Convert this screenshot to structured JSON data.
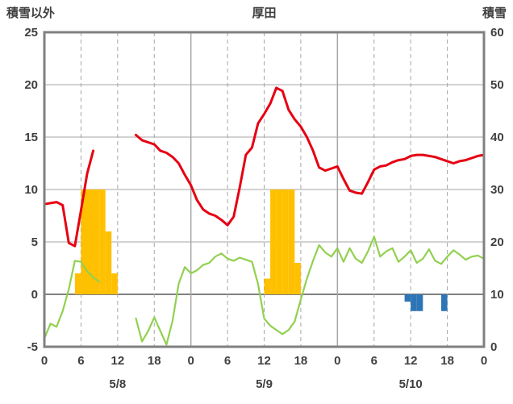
{
  "header": {
    "left_axis_title": "積雪以外",
    "station_title": "厚田",
    "right_axis_title": "積雪"
  },
  "chart_data": {
    "type": "line",
    "title": "厚田",
    "grid": true,
    "left_axis": {
      "label": "積雪以外",
      "min": -5,
      "max": 25,
      "ticks": [
        -5,
        0,
        5,
        10,
        15,
        20,
        25
      ]
    },
    "right_axis": {
      "label": "積雪",
      "min": 0,
      "max": 60,
      "ticks": [
        0,
        10,
        20,
        30,
        40,
        50,
        60
      ]
    },
    "x_axis": {
      "hours_total": 72,
      "tick_hours": [
        0,
        6,
        12,
        18,
        24,
        30,
        36,
        42,
        48,
        54,
        60,
        66,
        72
      ],
      "tick_labels": [
        "0",
        "6",
        "12",
        "18",
        "0",
        "6",
        "12",
        "18",
        "0",
        "6",
        "12",
        "18",
        "0"
      ],
      "day_labels": [
        {
          "label": "5/8",
          "hour": 12
        },
        {
          "label": "5/9",
          "hour": 36
        },
        {
          "label": "5/10",
          "hour": 60
        }
      ]
    },
    "series": [
      {
        "name": "temperature-line",
        "kind": "line",
        "axis": "left",
        "color": "#e60012",
        "width": 3,
        "values": [
          8.6,
          8.7,
          8.8,
          8.5,
          4.9,
          4.6,
          8.0,
          11.5,
          13.7,
          null,
          null,
          null,
          null,
          null,
          null,
          15.2,
          14.7,
          14.5,
          14.3,
          13.7,
          13.5,
          13.1,
          12.5,
          11.4,
          10.4,
          9.0,
          8.1,
          7.7,
          7.5,
          7.1,
          6.6,
          7.4,
          10.2,
          13.3,
          14.0,
          16.3,
          17.2,
          18.2,
          19.7,
          19.4,
          17.6,
          16.7,
          16.0,
          15.0,
          13.7,
          12.1,
          11.8,
          12.0,
          12.2,
          11.0,
          9.9,
          9.7,
          9.6,
          10.7,
          11.9,
          12.2,
          12.3,
          12.6,
          12.8,
          12.9,
          13.2,
          13.3,
          13.3,
          13.2,
          13.1,
          12.9,
          12.7,
          12.5,
          12.7,
          12.8,
          13.0,
          13.2,
          13.3
        ]
      },
      {
        "name": "wind-line",
        "kind": "line",
        "axis": "left",
        "color": "#92d050",
        "width": 2.2,
        "values": [
          -4.2,
          -2.8,
          -3.1,
          -1.6,
          0.5,
          3.2,
          3.1,
          2.2,
          1.6,
          1.2,
          null,
          null,
          null,
          null,
          null,
          -2.3,
          -4.5,
          -3.5,
          -2.2,
          -3.5,
          -4.8,
          -2.5,
          1.0,
          2.6,
          2.0,
          2.3,
          2.8,
          3.0,
          3.6,
          3.9,
          3.4,
          3.2,
          3.5,
          3.3,
          3.1,
          1.0,
          -2.3,
          -3.0,
          -3.4,
          -3.8,
          -3.4,
          -2.6,
          -0.5,
          1.5,
          3.2,
          4.7,
          4.0,
          3.6,
          4.4,
          3.1,
          4.4,
          3.4,
          3.0,
          4.1,
          5.5,
          3.6,
          4.1,
          4.4,
          3.1,
          3.6,
          4.2,
          3.0,
          3.4,
          4.3,
          3.2,
          2.9,
          3.6,
          4.2,
          3.8,
          3.3,
          3.6,
          3.7,
          3.4
        ]
      },
      {
        "name": "precipitation-bars",
        "kind": "bar",
        "axis": "left",
        "color": "#ffc000",
        "bars": [
          {
            "hour": 5,
            "value": 2
          },
          {
            "hour": 6,
            "value": 10
          },
          {
            "hour": 7,
            "value": 10
          },
          {
            "hour": 8,
            "value": 10
          },
          {
            "hour": 9,
            "value": 10
          },
          {
            "hour": 10,
            "value": 6
          },
          {
            "hour": 11,
            "value": 2
          },
          {
            "hour": 36,
            "value": 1.5
          },
          {
            "hour": 37,
            "value": 10
          },
          {
            "hour": 38,
            "value": 10
          },
          {
            "hour": 39,
            "value": 10
          },
          {
            "hour": 40,
            "value": 10
          },
          {
            "hour": 41,
            "value": 3
          }
        ]
      },
      {
        "name": "snow-bars",
        "kind": "bar",
        "axis": "left",
        "color": "#2e75b6",
        "bars": [
          {
            "hour": 59,
            "value": -0.7
          },
          {
            "hour": 60,
            "value": -1.6
          },
          {
            "hour": 61,
            "value": -1.6
          },
          {
            "hour": 65,
            "value": -1.6
          }
        ]
      }
    ],
    "colors": {
      "grid": "#a6a6a6",
      "zero_line": "#808080",
      "frame": "#808080",
      "text": "#3f3f3f",
      "background": "#ffffff"
    }
  }
}
